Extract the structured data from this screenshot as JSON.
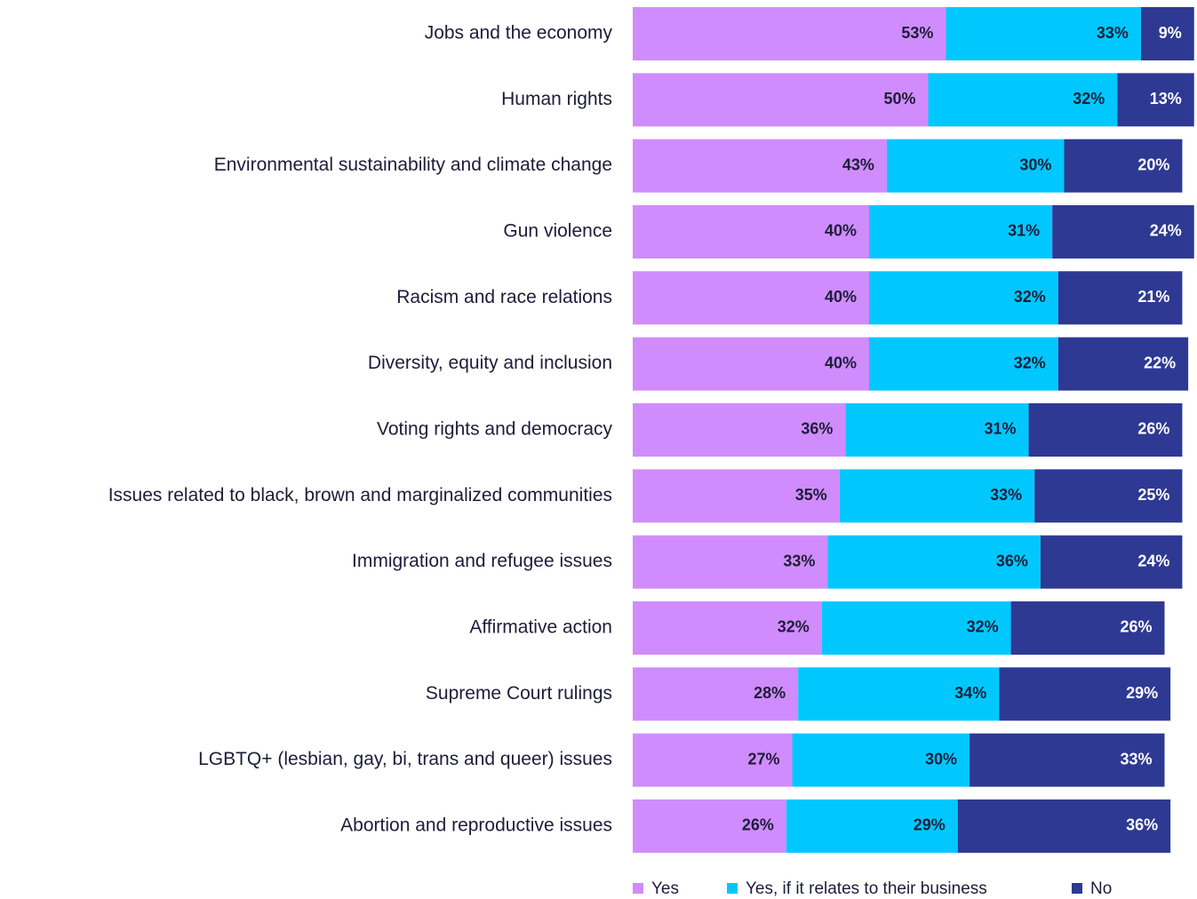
{
  "chart_data": {
    "type": "stacked-bar-horizontal",
    "categories": [
      "Jobs and the economy",
      "Human rights",
      "Environmental sustainability and climate change",
      "Gun violence",
      "Racism and race relations",
      "Diversity, equity and inclusion",
      "Voting rights and democracy",
      "Issues related to black, brown and marginalized communities",
      "Immigration and refugee issues",
      "Affirmative action",
      "Supreme Court rulings",
      "LGBTQ+ (lesbian, gay, bi, trans and queer) issues",
      "Abortion and reproductive issues"
    ],
    "series": [
      {
        "name": "Yes",
        "color": "#d08cfc",
        "label_color": "#1d1d3a",
        "values": [
          53,
          50,
          43,
          40,
          40,
          40,
          36,
          35,
          33,
          32,
          28,
          27,
          26
        ],
        "value_labels": [
          "53%",
          "50%",
          "43%",
          "40%",
          "40%",
          "40%",
          "36%",
          "35%",
          "33%",
          "32%",
          "28%",
          "27%",
          "26%"
        ]
      },
      {
        "name": "Yes, if it relates to their business",
        "color": "#00c8ff",
        "label_color": "#1d1d3a",
        "values": [
          33,
          32,
          30,
          31,
          32,
          32,
          31,
          33,
          36,
          32,
          34,
          30,
          29
        ],
        "value_labels": [
          "33%",
          "32%",
          "30%",
          "31%",
          "32%",
          "32%",
          "31%",
          "33%",
          "36%",
          "32%",
          "34%",
          "30%",
          "29%"
        ]
      },
      {
        "name": "No",
        "color": "#2e3993",
        "label_color": "#ffffff",
        "values": [
          9,
          13,
          20,
          24,
          21,
          22,
          26,
          25,
          24,
          26,
          29,
          33,
          36
        ],
        "value_labels": [
          "9%",
          "13%",
          "20%",
          "24%",
          "21%",
          "22%",
          "26%",
          "25%",
          "24%",
          "26%",
          "29%",
          "33%",
          "36%"
        ]
      }
    ],
    "legend": "bottom"
  }
}
